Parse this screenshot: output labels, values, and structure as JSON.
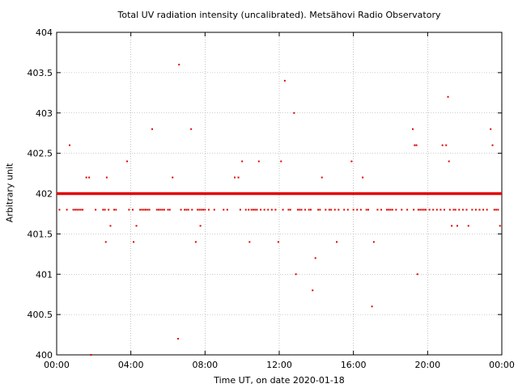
{
  "chart_data": {
    "type": "scatter",
    "title": "Total UV radiation intensity (uncalibrated). Metsähovi Radio Observatory",
    "xlabel": "Time UT, on date 2020-01-18",
    "ylabel": "Arbitrary unit",
    "xlim": [
      0,
      24
    ],
    "ylim": [
      400,
      404
    ],
    "x_ticks": [
      "00:00",
      "04:00",
      "08:00",
      "12:00",
      "16:00",
      "20:00",
      "00:00"
    ],
    "y_ticks": [
      "400",
      "400.5",
      "401",
      "401.5",
      "402",
      "402.5",
      "403",
      "403.5",
      "404"
    ],
    "grid": true,
    "point_color": "#e00000",
    "series": [
      {
        "baseline_value": 402.0,
        "baseline_range_hours": [
          0,
          24
        ],
        "points": [
          [
            0.15,
            401.8
          ],
          [
            0.55,
            401.8
          ],
          [
            0.7,
            402.6
          ],
          [
            0.9,
            401.8
          ],
          [
            1.0,
            401.8
          ],
          [
            1.1,
            401.8
          ],
          [
            1.2,
            401.8
          ],
          [
            1.3,
            401.8
          ],
          [
            1.4,
            401.8
          ],
          [
            1.6,
            402.2
          ],
          [
            1.75,
            402.2
          ],
          [
            1.85,
            400.0
          ],
          [
            2.1,
            401.8
          ],
          [
            2.5,
            401.8
          ],
          [
            2.6,
            401.8
          ],
          [
            2.65,
            401.4
          ],
          [
            2.7,
            402.2
          ],
          [
            2.8,
            401.8
          ],
          [
            2.9,
            401.6
          ],
          [
            3.1,
            401.8
          ],
          [
            3.2,
            401.8
          ],
          [
            3.8,
            402.4
          ],
          [
            3.9,
            401.8
          ],
          [
            4.1,
            401.8
          ],
          [
            4.15,
            401.4
          ],
          [
            4.3,
            401.6
          ],
          [
            4.5,
            401.8
          ],
          [
            4.6,
            401.8
          ],
          [
            4.7,
            401.8
          ],
          [
            4.8,
            401.8
          ],
          [
            4.9,
            401.8
          ],
          [
            5.0,
            401.8
          ],
          [
            5.15,
            402.8
          ],
          [
            5.4,
            401.8
          ],
          [
            5.5,
            401.8
          ],
          [
            5.6,
            401.8
          ],
          [
            5.7,
            401.8
          ],
          [
            5.8,
            401.8
          ],
          [
            6.0,
            401.8
          ],
          [
            6.1,
            401.8
          ],
          [
            6.25,
            402.2
          ],
          [
            6.55,
            400.2
          ],
          [
            6.6,
            403.6
          ],
          [
            6.7,
            401.8
          ],
          [
            6.9,
            401.8
          ],
          [
            7.0,
            401.8
          ],
          [
            7.1,
            401.8
          ],
          [
            7.25,
            402.8
          ],
          [
            7.3,
            401.8
          ],
          [
            7.5,
            401.4
          ],
          [
            7.6,
            401.8
          ],
          [
            7.7,
            401.8
          ],
          [
            7.75,
            401.6
          ],
          [
            7.8,
            401.8
          ],
          [
            7.9,
            401.8
          ],
          [
            8.0,
            401.8
          ],
          [
            8.2,
            401.8
          ],
          [
            8.5,
            401.8
          ],
          [
            9.0,
            401.8
          ],
          [
            9.2,
            401.8
          ],
          [
            9.6,
            402.2
          ],
          [
            9.8,
            402.2
          ],
          [
            9.9,
            401.8
          ],
          [
            10.0,
            402.4
          ],
          [
            10.2,
            401.8
          ],
          [
            10.35,
            401.8
          ],
          [
            10.4,
            401.4
          ],
          [
            10.5,
            401.8
          ],
          [
            10.6,
            401.8
          ],
          [
            10.7,
            401.8
          ],
          [
            10.8,
            401.8
          ],
          [
            10.9,
            402.4
          ],
          [
            11.0,
            401.8
          ],
          [
            11.2,
            401.8
          ],
          [
            11.4,
            401.8
          ],
          [
            11.6,
            401.8
          ],
          [
            11.8,
            401.8
          ],
          [
            11.95,
            401.4
          ],
          [
            12.1,
            402.4
          ],
          [
            12.2,
            401.8
          ],
          [
            12.3,
            403.4
          ],
          [
            12.5,
            401.8
          ],
          [
            12.6,
            401.8
          ],
          [
            12.8,
            403.0
          ],
          [
            12.9,
            401.0
          ],
          [
            13.0,
            401.8
          ],
          [
            13.1,
            401.8
          ],
          [
            13.2,
            401.8
          ],
          [
            13.4,
            401.8
          ],
          [
            13.6,
            401.8
          ],
          [
            13.7,
            401.8
          ],
          [
            13.8,
            400.8
          ],
          [
            13.95,
            401.2
          ],
          [
            14.1,
            401.8
          ],
          [
            14.2,
            401.8
          ],
          [
            14.3,
            402.2
          ],
          [
            14.5,
            401.8
          ],
          [
            14.7,
            401.8
          ],
          [
            14.8,
            401.8
          ],
          [
            15.0,
            401.8
          ],
          [
            15.1,
            401.4
          ],
          [
            15.2,
            401.8
          ],
          [
            15.5,
            401.8
          ],
          [
            15.7,
            401.8
          ],
          [
            15.9,
            402.4
          ],
          [
            16.0,
            401.8
          ],
          [
            16.2,
            401.8
          ],
          [
            16.4,
            401.8
          ],
          [
            16.5,
            402.2
          ],
          [
            16.7,
            401.8
          ],
          [
            16.8,
            401.8
          ],
          [
            17.0,
            400.6
          ],
          [
            17.1,
            401.4
          ],
          [
            17.3,
            401.8
          ],
          [
            17.5,
            401.8
          ],
          [
            17.8,
            401.8
          ],
          [
            17.9,
            401.8
          ],
          [
            18.0,
            401.8
          ],
          [
            18.1,
            401.8
          ],
          [
            18.3,
            401.8
          ],
          [
            18.6,
            401.8
          ],
          [
            18.9,
            401.8
          ],
          [
            19.2,
            402.8
          ],
          [
            19.25,
            401.8
          ],
          [
            19.3,
            402.6
          ],
          [
            19.4,
            402.6
          ],
          [
            19.45,
            401.0
          ],
          [
            19.5,
            401.8
          ],
          [
            19.6,
            401.8
          ],
          [
            19.7,
            401.8
          ],
          [
            19.8,
            401.8
          ],
          [
            19.9,
            401.8
          ],
          [
            20.1,
            401.8
          ],
          [
            20.3,
            401.8
          ],
          [
            20.5,
            401.8
          ],
          [
            20.7,
            401.8
          ],
          [
            20.8,
            402.6
          ],
          [
            20.9,
            401.8
          ],
          [
            21.0,
            402.6
          ],
          [
            21.1,
            403.2
          ],
          [
            21.15,
            402.4
          ],
          [
            21.2,
            401.8
          ],
          [
            21.3,
            401.6
          ],
          [
            21.4,
            401.8
          ],
          [
            21.5,
            401.8
          ],
          [
            21.6,
            401.6
          ],
          [
            21.7,
            401.8
          ],
          [
            21.9,
            401.8
          ],
          [
            22.1,
            401.8
          ],
          [
            22.2,
            401.6
          ],
          [
            22.4,
            401.8
          ],
          [
            22.6,
            401.8
          ],
          [
            22.8,
            401.8
          ],
          [
            23.0,
            401.8
          ],
          [
            23.2,
            401.8
          ],
          [
            23.4,
            402.8
          ],
          [
            23.5,
            402.6
          ],
          [
            23.6,
            401.8
          ],
          [
            23.7,
            401.8
          ],
          [
            23.8,
            401.8
          ],
          [
            23.9,
            401.6
          ]
        ]
      }
    ]
  }
}
